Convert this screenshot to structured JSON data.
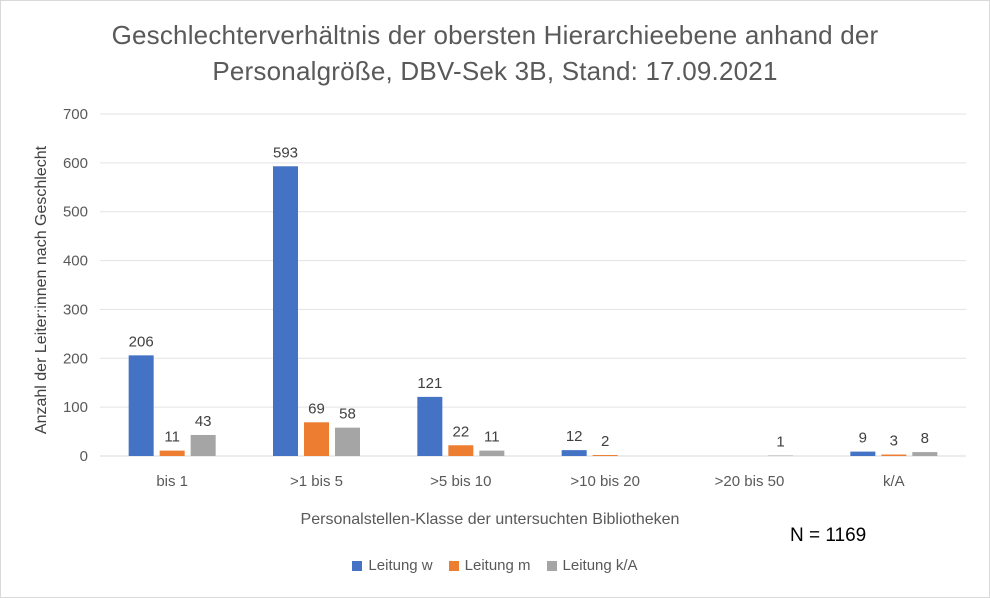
{
  "chart_data": {
    "type": "bar",
    "title_line1": "Geschlechterverhältnis der obersten Hierarchieebene anhand der",
    "title_line2": "Personalgröße, DBV-Sek 3B, Stand: 17.09.2021",
    "xlabel": "Personalstellen-Klasse der untersuchten Bibliotheken",
    "ylabel": "Anzahl der Leiter:innen  nach Geschlecht",
    "categories": [
      "bis 1",
      ">1 bis 5",
      ">5 bis 10",
      ">10 bis 20",
      ">20 bis 50",
      "k/A"
    ],
    "series": [
      {
        "name": "Leitung w",
        "color": "#4472c4",
        "values": [
          206,
          593,
          121,
          12,
          null,
          9
        ]
      },
      {
        "name": "Leitung m",
        "color": "#ed7d31",
        "values": [
          11,
          69,
          22,
          2,
          null,
          3
        ]
      },
      {
        "name": "Leitung k/A",
        "color": "#a5a5a5",
        "values": [
          43,
          58,
          11,
          null,
          1,
          8
        ]
      }
    ],
    "ylim": [
      0,
      700
    ],
    "yticks": [
      0,
      100,
      200,
      300,
      400,
      500,
      600,
      700
    ],
    "grid": true,
    "legend_position": "bottom",
    "annotation": "N = 1169"
  }
}
